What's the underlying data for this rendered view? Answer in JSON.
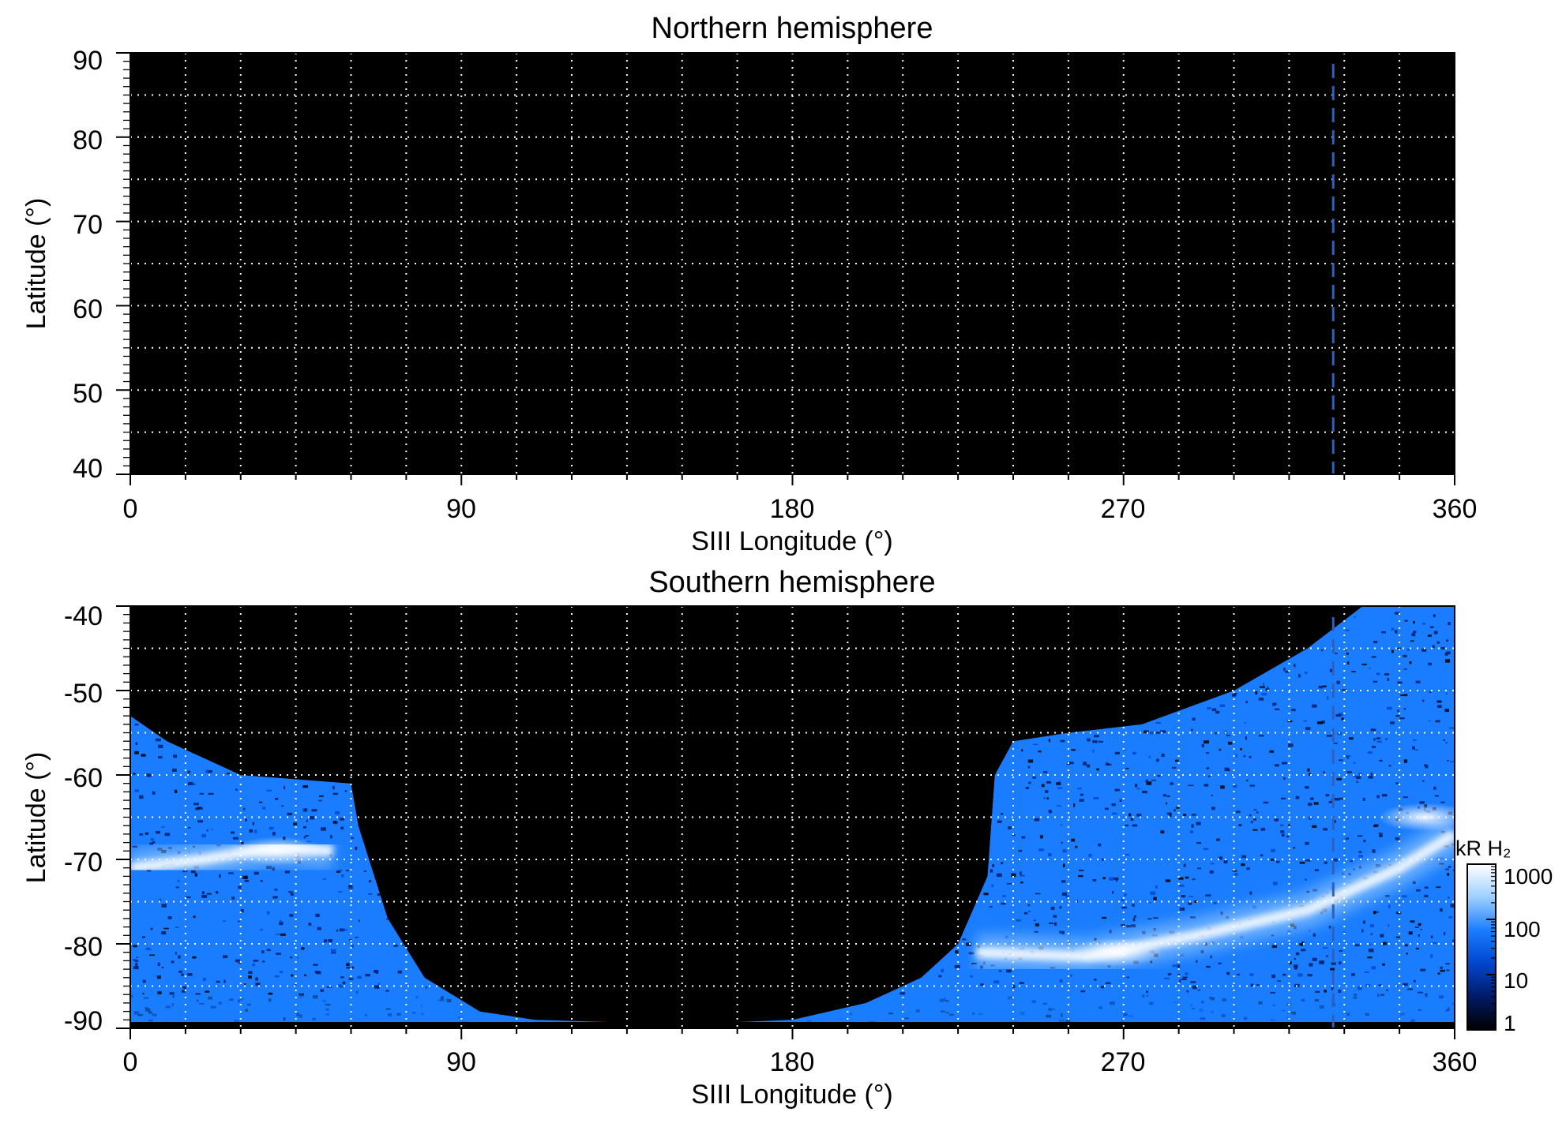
{
  "chart_data": [
    {
      "type": "heatmap",
      "title": "Northern hemisphere",
      "xlabel": "SIII Longitude (°)",
      "ylabel": "Latitude (°)",
      "xlim": [
        0,
        360
      ],
      "ylim": [
        40,
        90
      ],
      "x_ticks": [
        "0",
        "90",
        "180",
        "270",
        "360"
      ],
      "y_ticks": [
        "40",
        "50",
        "60",
        "70",
        "80",
        "90"
      ],
      "grid": true,
      "background": "#000000",
      "marker_longitude": 327,
      "marker_color": "#2f5fb8",
      "emission": []
    },
    {
      "type": "heatmap",
      "title": "Southern hemisphere",
      "xlabel": "SIII Longitude (°)",
      "ylabel": "Latitude (°)",
      "xlim": [
        0,
        360
      ],
      "ylim": [
        -90,
        -40
      ],
      "x_ticks": [
        "0",
        "90",
        "180",
        "270",
        "360"
      ],
      "y_ticks": [
        "-40",
        "-50",
        "-60",
        "-70",
        "-80",
        "-90"
      ],
      "grid": true,
      "background": "#000000",
      "marker_longitude": 327,
      "marker_color": "#2f5fb8",
      "coverage_boundary": [
        [
          0,
          -53
        ],
        [
          10,
          -56
        ],
        [
          30,
          -60
        ],
        [
          60,
          -61
        ],
        [
          62,
          -66
        ],
        [
          70,
          -77
        ],
        [
          80,
          -84
        ],
        [
          95,
          -88
        ],
        [
          110,
          -89
        ],
        [
          150,
          -89.5
        ],
        [
          180,
          -89
        ],
        [
          200,
          -87
        ],
        [
          215,
          -84
        ],
        [
          225,
          -80
        ],
        [
          233,
          -72
        ],
        [
          235,
          -60
        ],
        [
          240,
          -56
        ],
        [
          255,
          -55
        ],
        [
          275,
          -54
        ],
        [
          300,
          -50
        ],
        [
          320,
          -45
        ],
        [
          335,
          -40
        ],
        [
          360,
          -40
        ]
      ],
      "main_oval": [
        [
          0,
          -71
        ],
        [
          20,
          -70
        ],
        [
          40,
          -68.5
        ],
        [
          55,
          -69
        ],
        [
          230,
          -81
        ],
        [
          260,
          -81.5
        ],
        [
          290,
          -79
        ],
        [
          320,
          -76
        ],
        [
          345,
          -71
        ],
        [
          360,
          -67
        ]
      ],
      "bright_spots": [
        {
          "lon": 40,
          "lat": -69,
          "kR": 900
        },
        {
          "lon": 268,
          "lat": -81,
          "kR": 1000
        },
        {
          "lon": 352,
          "lat": -65,
          "kR": 800
        }
      ],
      "colorbar": {
        "label": "kR H₂",
        "scale": "log",
        "range": [
          1,
          1000
        ],
        "ticks": [
          "1000",
          "100",
          "10",
          "1"
        ],
        "colors": [
          "#000000",
          "#001a66",
          "#0046cc",
          "#1a7dff",
          "#9ccfff",
          "#ffffff"
        ]
      }
    }
  ]
}
